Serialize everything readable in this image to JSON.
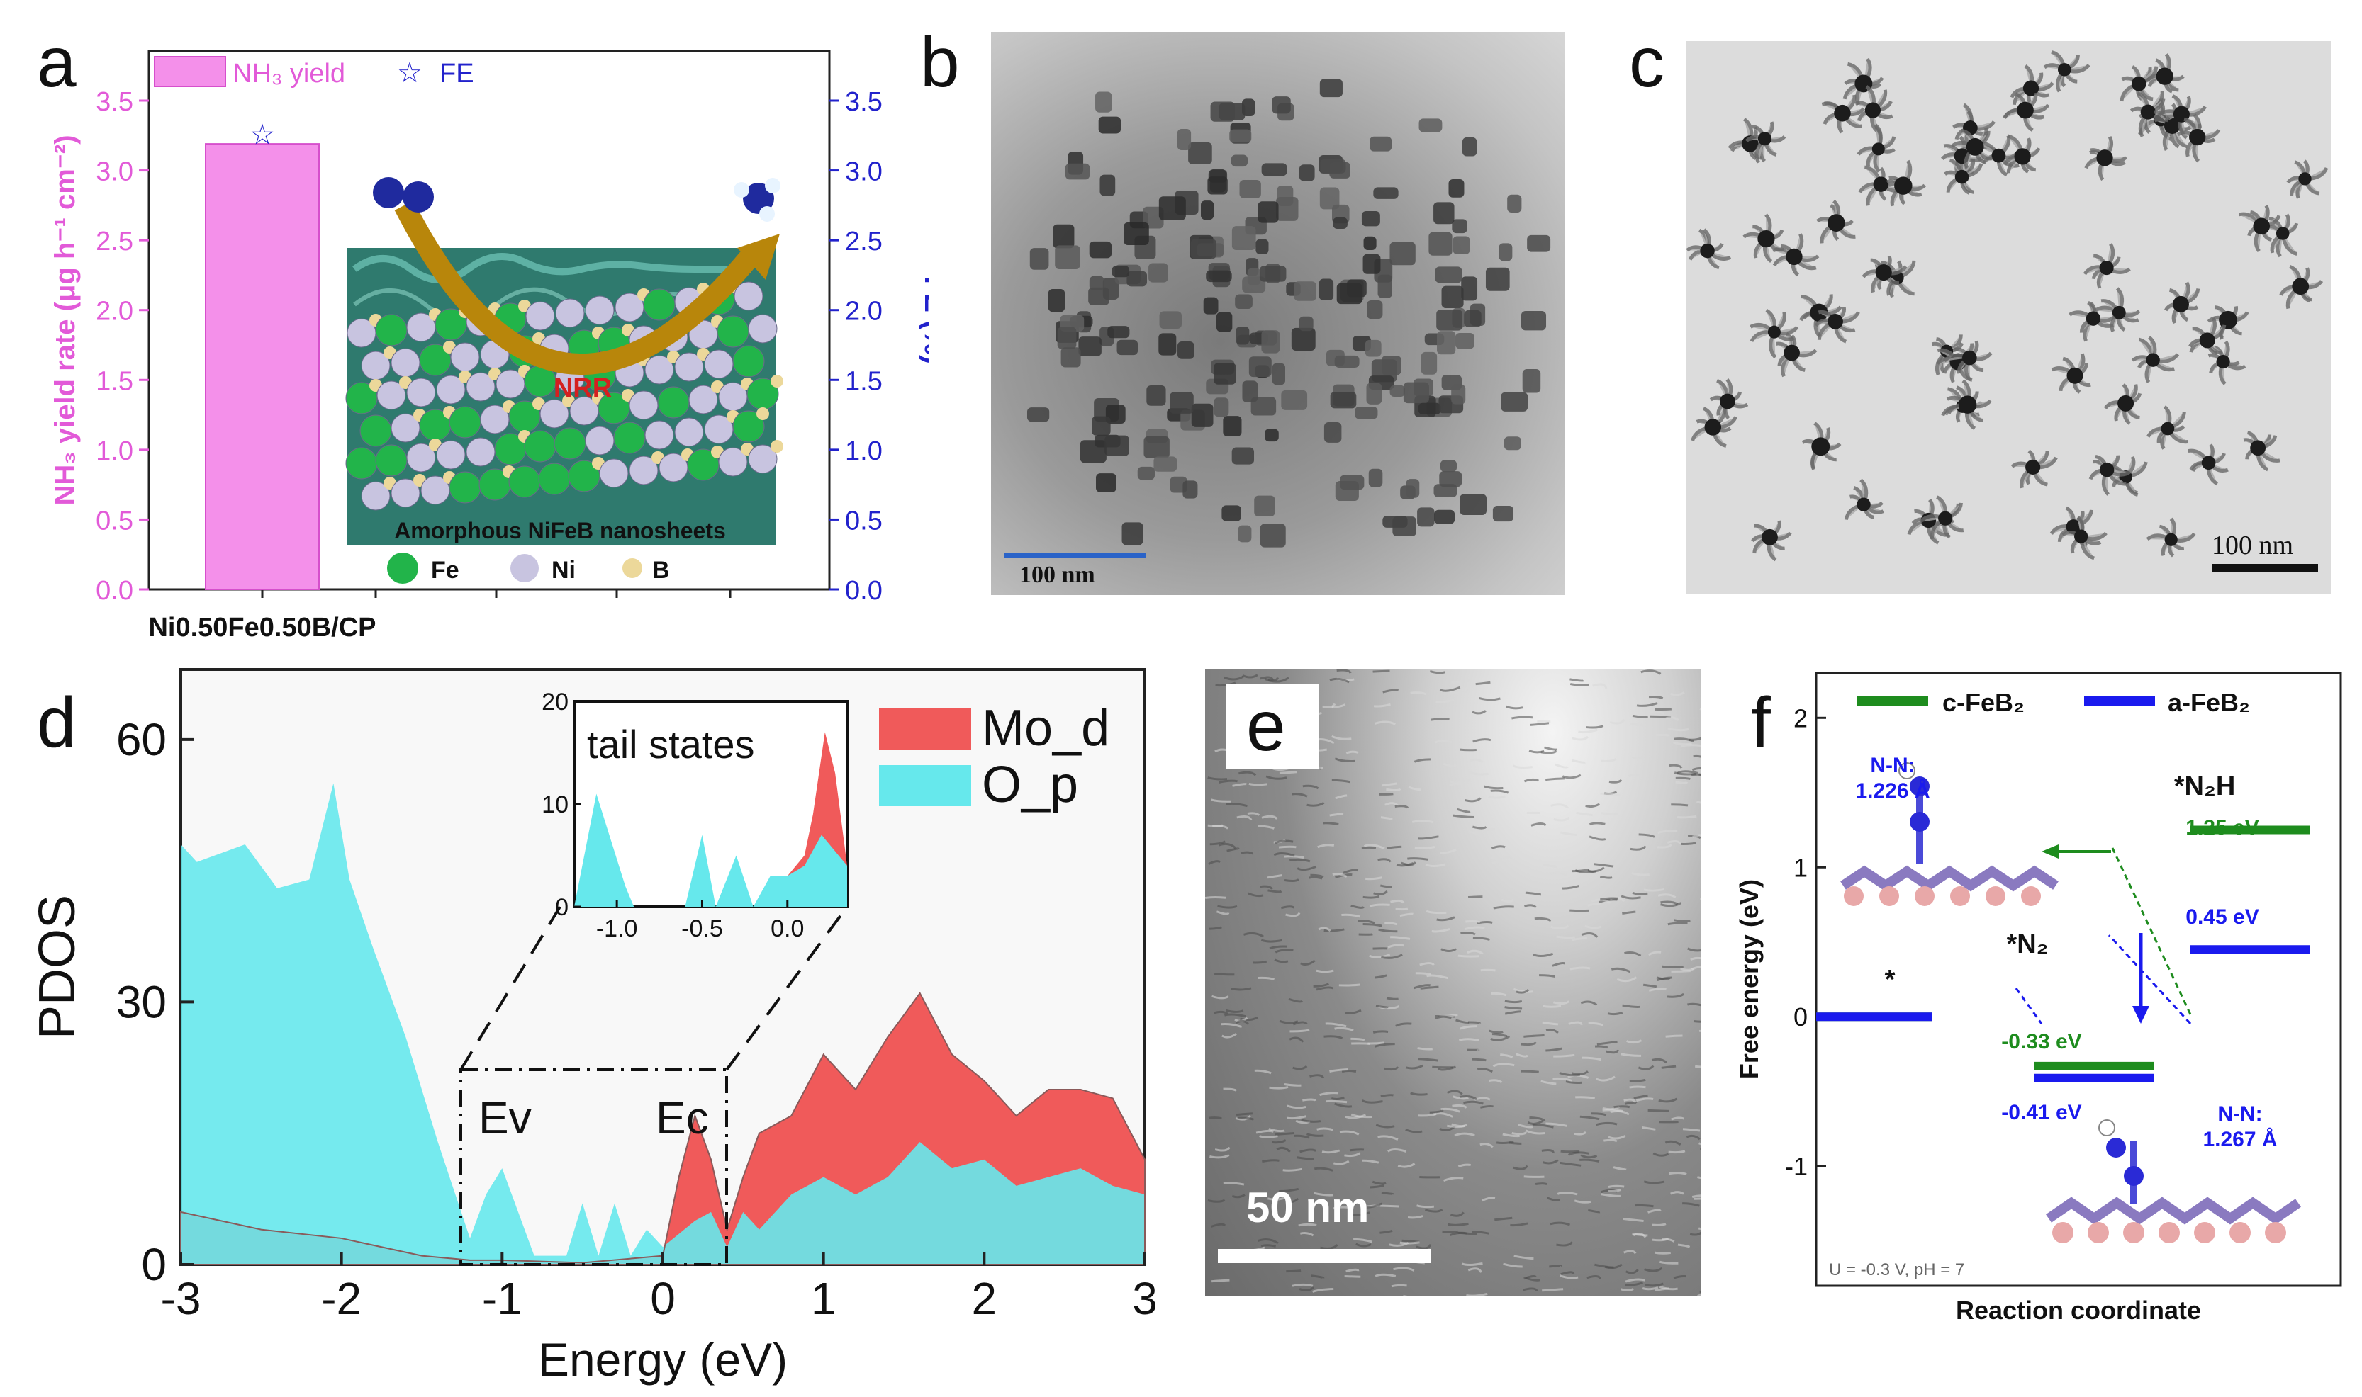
{
  "panel_labels": [
    "a",
    "b",
    "c",
    "d",
    "e",
    "f"
  ],
  "panel_a": {
    "legend": {
      "yield": "NH₃ yield",
      "fe": "FE"
    },
    "ylabel_left": "NH₃ yield rate (μg h⁻¹ cm⁻²)",
    "ylabel_right": "FE (%)",
    "category": "Ni0.50Fe0.50B/CP",
    "inset": {
      "reaction": "NRR",
      "caption": "Amorphous NiFeB nanosheets",
      "legend": [
        "Fe",
        "Ni",
        "B"
      ]
    }
  },
  "panel_b": {
    "scalebar": "100 nm"
  },
  "panel_c": {
    "scalebar": "100 nm"
  },
  "panel_d": {
    "ylabel": "PDOS",
    "xlabel": "Energy (eV)",
    "legend": [
      "Mo_d",
      "O_p"
    ],
    "inset_title": "tail states",
    "markers": [
      "Ev",
      "Ec"
    ]
  },
  "panel_e": {
    "scalebar": "50 nm"
  },
  "panel_f": {
    "legend": [
      "c-FeB₂",
      "a-FeB₂"
    ],
    "ylabel": "Free energy (eV)",
    "xlabel": "Reaction coordinate",
    "species": [
      "*",
      "*N₂",
      "*N₂H"
    ],
    "energy_labels": [
      "1.25 eV",
      "0.45 eV",
      "-0.33 eV",
      "-0.41 eV"
    ],
    "bond_labels": [
      "N-N:",
      "1.226 Å",
      "N-N:",
      "1.267 Å"
    ],
    "condition": "U = -0.3 V, pH = 7"
  },
  "chart_data": [
    {
      "type": "bar",
      "categories": [
        "Ni0.50Fe0.50B/CP"
      ],
      "series": [
        {
          "name": "NH₃ yield",
          "values": [
            3.19
          ],
          "axis": "left"
        },
        {
          "name": "FE",
          "values": [
            3.26
          ],
          "axis": "right",
          "marker": "star"
        }
      ],
      "ylabel": "NH₃ yield rate (μg h⁻¹ cm⁻²)",
      "y2label": "FE (%)",
      "ylim": [
        0,
        3.5
      ],
      "y2lim": [
        0,
        3.5
      ],
      "yticks": [
        0.0,
        0.5,
        1.0,
        1.5,
        2.0,
        2.5,
        3.0,
        3.5
      ],
      "colors": {
        "bar": "#f26de6",
        "left_axis": "#e25ad8",
        "right_axis": "#2a2ad6"
      }
    },
    {
      "type": "area",
      "xlabel": "Energy (eV)",
      "ylabel": "PDOS",
      "xlim": [
        -3,
        3
      ],
      "ylim": [
        0,
        68
      ],
      "xticks": [
        -3,
        -2,
        -1,
        0,
        1,
        2,
        3
      ],
      "yticks": [
        0,
        30,
        60
      ],
      "legend_position": "top-right",
      "series": [
        {
          "name": "O_p",
          "color": "#66e8ec",
          "x": [
            -3,
            -2.9,
            -2.6,
            -2.4,
            -2.2,
            -2.05,
            -1.95,
            -1.8,
            -1.6,
            -1.4,
            -1.2,
            -1.1,
            -1.0,
            -0.9,
            -0.8,
            -0.6,
            -0.5,
            -0.4,
            -0.3,
            -0.2,
            -0.1,
            0,
            0.2,
            0.3,
            0.4,
            0.5,
            0.6,
            0.8,
            1.0,
            1.2,
            1.4,
            1.6,
            1.8,
            2.0,
            2.2,
            2.4,
            2.6,
            2.8,
            3.0
          ],
          "y": [
            48,
            46,
            48,
            43,
            44,
            55,
            44,
            36,
            26,
            14,
            3,
            8,
            11,
            6,
            1,
            1,
            7,
            1,
            7,
            1,
            4,
            2,
            5,
            6,
            2,
            6,
            4,
            8,
            10,
            8,
            10,
            14,
            11,
            12,
            9,
            10,
            11,
            9,
            8
          ]
        },
        {
          "name": "Mo_d",
          "color": "#f05a5a",
          "x": [
            -3,
            -2.5,
            -2.0,
            -1.5,
            -1.2,
            -1.0,
            -0.5,
            0,
            0.1,
            0.2,
            0.3,
            0.4,
            0.5,
            0.6,
            0.8,
            1.0,
            1.2,
            1.4,
            1.6,
            1.8,
            2.0,
            2.2,
            2.4,
            2.6,
            2.8,
            3.0
          ],
          "y": [
            6,
            4,
            3,
            1,
            0.5,
            0.5,
            0.2,
            1,
            10,
            17,
            12,
            4,
            10,
            15,
            17,
            24,
            20,
            26,
            31,
            24,
            21,
            17,
            20,
            20,
            19,
            12
          ]
        }
      ],
      "inset": {
        "title": "tail states",
        "xlim": [
          -1.25,
          0.35
        ],
        "ylim": [
          0,
          20
        ],
        "xticks": [
          -1.0,
          -0.5,
          0.0
        ],
        "yticks": [
          0,
          10,
          20
        ]
      },
      "annotations": [
        "Ev",
        "Ec"
      ]
    },
    {
      "type": "line",
      "xlabel": "Reaction coordinate",
      "ylabel": "Free energy (eV)",
      "ylim": [
        -1.8,
        2.3
      ],
      "yticks": [
        -1,
        0,
        1,
        2
      ],
      "categories": [
        "*",
        "*N₂",
        "*N₂H"
      ],
      "series": [
        {
          "name": "c-FeB₂",
          "color": "#1e8c1e",
          "values": [
            0,
            -0.33,
            1.25
          ]
        },
        {
          "name": "a-FeB₂",
          "color": "#1a1aee",
          "values": [
            0,
            -0.41,
            0.45
          ]
        }
      ],
      "legend_position": "top"
    }
  ]
}
